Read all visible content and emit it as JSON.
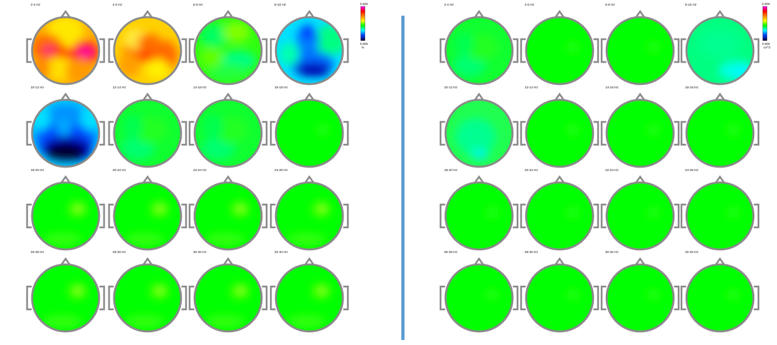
{
  "panels": [
    {
      "id": "left",
      "colorbar": {
        "max_label": "0.000",
        "min_label": "0.000",
        "unit_label": "%"
      },
      "maps": [
        {
          "label": "2-4 Hz",
          "pattern": "warm-a"
        },
        {
          "label": "4-6 Hz",
          "pattern": "warm-b"
        },
        {
          "label": "6-8 Hz",
          "pattern": "green-mix"
        },
        {
          "label": "8-10 Hz",
          "pattern": "blue-a"
        },
        {
          "label": "10-12 Hz",
          "pattern": "blue-b"
        },
        {
          "label": "12-14 Hz",
          "pattern": "green-light"
        },
        {
          "label": "14-16 Hz",
          "pattern": "green-light"
        },
        {
          "label": "16-18 Hz",
          "pattern": "green-plain"
        },
        {
          "label": "18-20 Hz",
          "pattern": "green-spot"
        },
        {
          "label": "20-22 Hz",
          "pattern": "green-spot"
        },
        {
          "label": "22-24 Hz",
          "pattern": "green-spot"
        },
        {
          "label": "24-26 Hz",
          "pattern": "green-spot"
        },
        {
          "label": "26-28 Hz",
          "pattern": "green-spot"
        },
        {
          "label": "28-30 Hz",
          "pattern": "green-spot"
        },
        {
          "label": "30-32 Hz",
          "pattern": "green-spot"
        },
        {
          "label": "32-34 Hz",
          "pattern": "green-spot"
        }
      ]
    },
    {
      "id": "right",
      "colorbar": {
        "max_label": "0.000",
        "min_label": "0.000",
        "unit_label": "uV^2"
      },
      "maps": [
        {
          "label": "2-4 Hz",
          "pattern": "green-light"
        },
        {
          "label": "4-6 Hz",
          "pattern": "green-plain"
        },
        {
          "label": "6-8 Hz",
          "pattern": "green-plain"
        },
        {
          "label": "8-10 Hz",
          "pattern": "cyan-a"
        },
        {
          "label": "10-12 Hz",
          "pattern": "cyan-b"
        },
        {
          "label": "12-14 Hz",
          "pattern": "green-plain"
        },
        {
          "label": "14-16 Hz",
          "pattern": "green-plain"
        },
        {
          "label": "16-18 Hz",
          "pattern": "green-plain"
        },
        {
          "label": "18-20 Hz",
          "pattern": "green-plain"
        },
        {
          "label": "20-22 Hz",
          "pattern": "green-plain"
        },
        {
          "label": "22-24 Hz",
          "pattern": "green-plain"
        },
        {
          "label": "24-26 Hz",
          "pattern": "green-plain"
        },
        {
          "label": "26-28 Hz",
          "pattern": "green-plain"
        },
        {
          "label": "28-30 Hz",
          "pattern": "green-plain"
        },
        {
          "label": "30-32 Hz",
          "pattern": "green-plain"
        },
        {
          "label": "32-34 Hz",
          "pattern": "green-plain"
        }
      ]
    }
  ],
  "colors": {
    "divider": "#5b9bd0",
    "head_outline": "#8a8a8a",
    "background": "#ffffff",
    "base_green": "#00ff00"
  }
}
